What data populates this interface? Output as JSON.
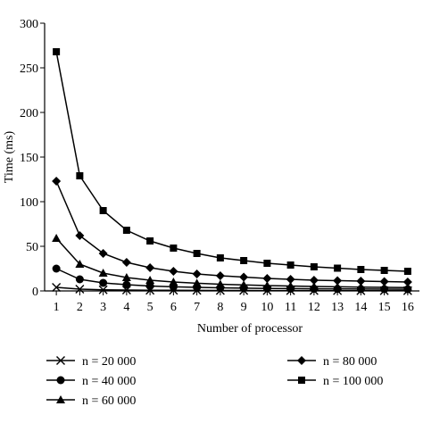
{
  "chart_data": {
    "type": "line",
    "title": "",
    "xlabel": "Number of processor",
    "ylabel": "Time (ms)",
    "x": [
      1,
      2,
      3,
      4,
      5,
      6,
      7,
      8,
      9,
      10,
      11,
      12,
      13,
      14,
      15,
      16
    ],
    "xticks": [
      "1",
      "2",
      "3",
      "4",
      "5",
      "6",
      "7",
      "8",
      "9",
      "10",
      "11",
      "12",
      "13",
      "14",
      "15",
      "16"
    ],
    "xlim": [
      0.5,
      16.5
    ],
    "ylim": [
      0,
      300
    ],
    "yticks": [
      "0",
      "50",
      "100",
      "150",
      "200",
      "250",
      "300"
    ],
    "grid": false,
    "legend_position": "bottom",
    "series": [
      {
        "name": "n = 20 000",
        "marker": "x",
        "values": [
          4,
          2,
          1.3,
          1,
          0.8,
          0.7,
          0.6,
          0.5,
          0.45,
          0.4,
          0.37,
          0.34,
          0.31,
          0.29,
          0.27,
          0.25
        ]
      },
      {
        "name": "n = 40 000",
        "marker": "circle",
        "values": [
          25,
          13,
          9,
          7,
          5.5,
          4.6,
          4,
          3.5,
          3.1,
          2.8,
          2.6,
          2.4,
          2.2,
          2.1,
          2,
          1.9
        ]
      },
      {
        "name": "n = 60 000",
        "marker": "triangle",
        "values": [
          59,
          30,
          20,
          15,
          12,
          10,
          8.6,
          7.5,
          6.7,
          6,
          5.5,
          5,
          4.6,
          4.3,
          4,
          3.8
        ]
      },
      {
        "name": "n = 80 000",
        "marker": "diamond",
        "values": [
          123,
          62,
          42,
          32,
          26,
          22,
          19,
          17,
          15.5,
          14,
          13,
          12,
          11.5,
          11,
          10.5,
          10
        ]
      },
      {
        "name": "n = 100 000",
        "marker": "square",
        "values": [
          268,
          129,
          90,
          68,
          56,
          48,
          42,
          37,
          34,
          31,
          29,
          27,
          25.5,
          24,
          23,
          22
        ]
      }
    ]
  }
}
